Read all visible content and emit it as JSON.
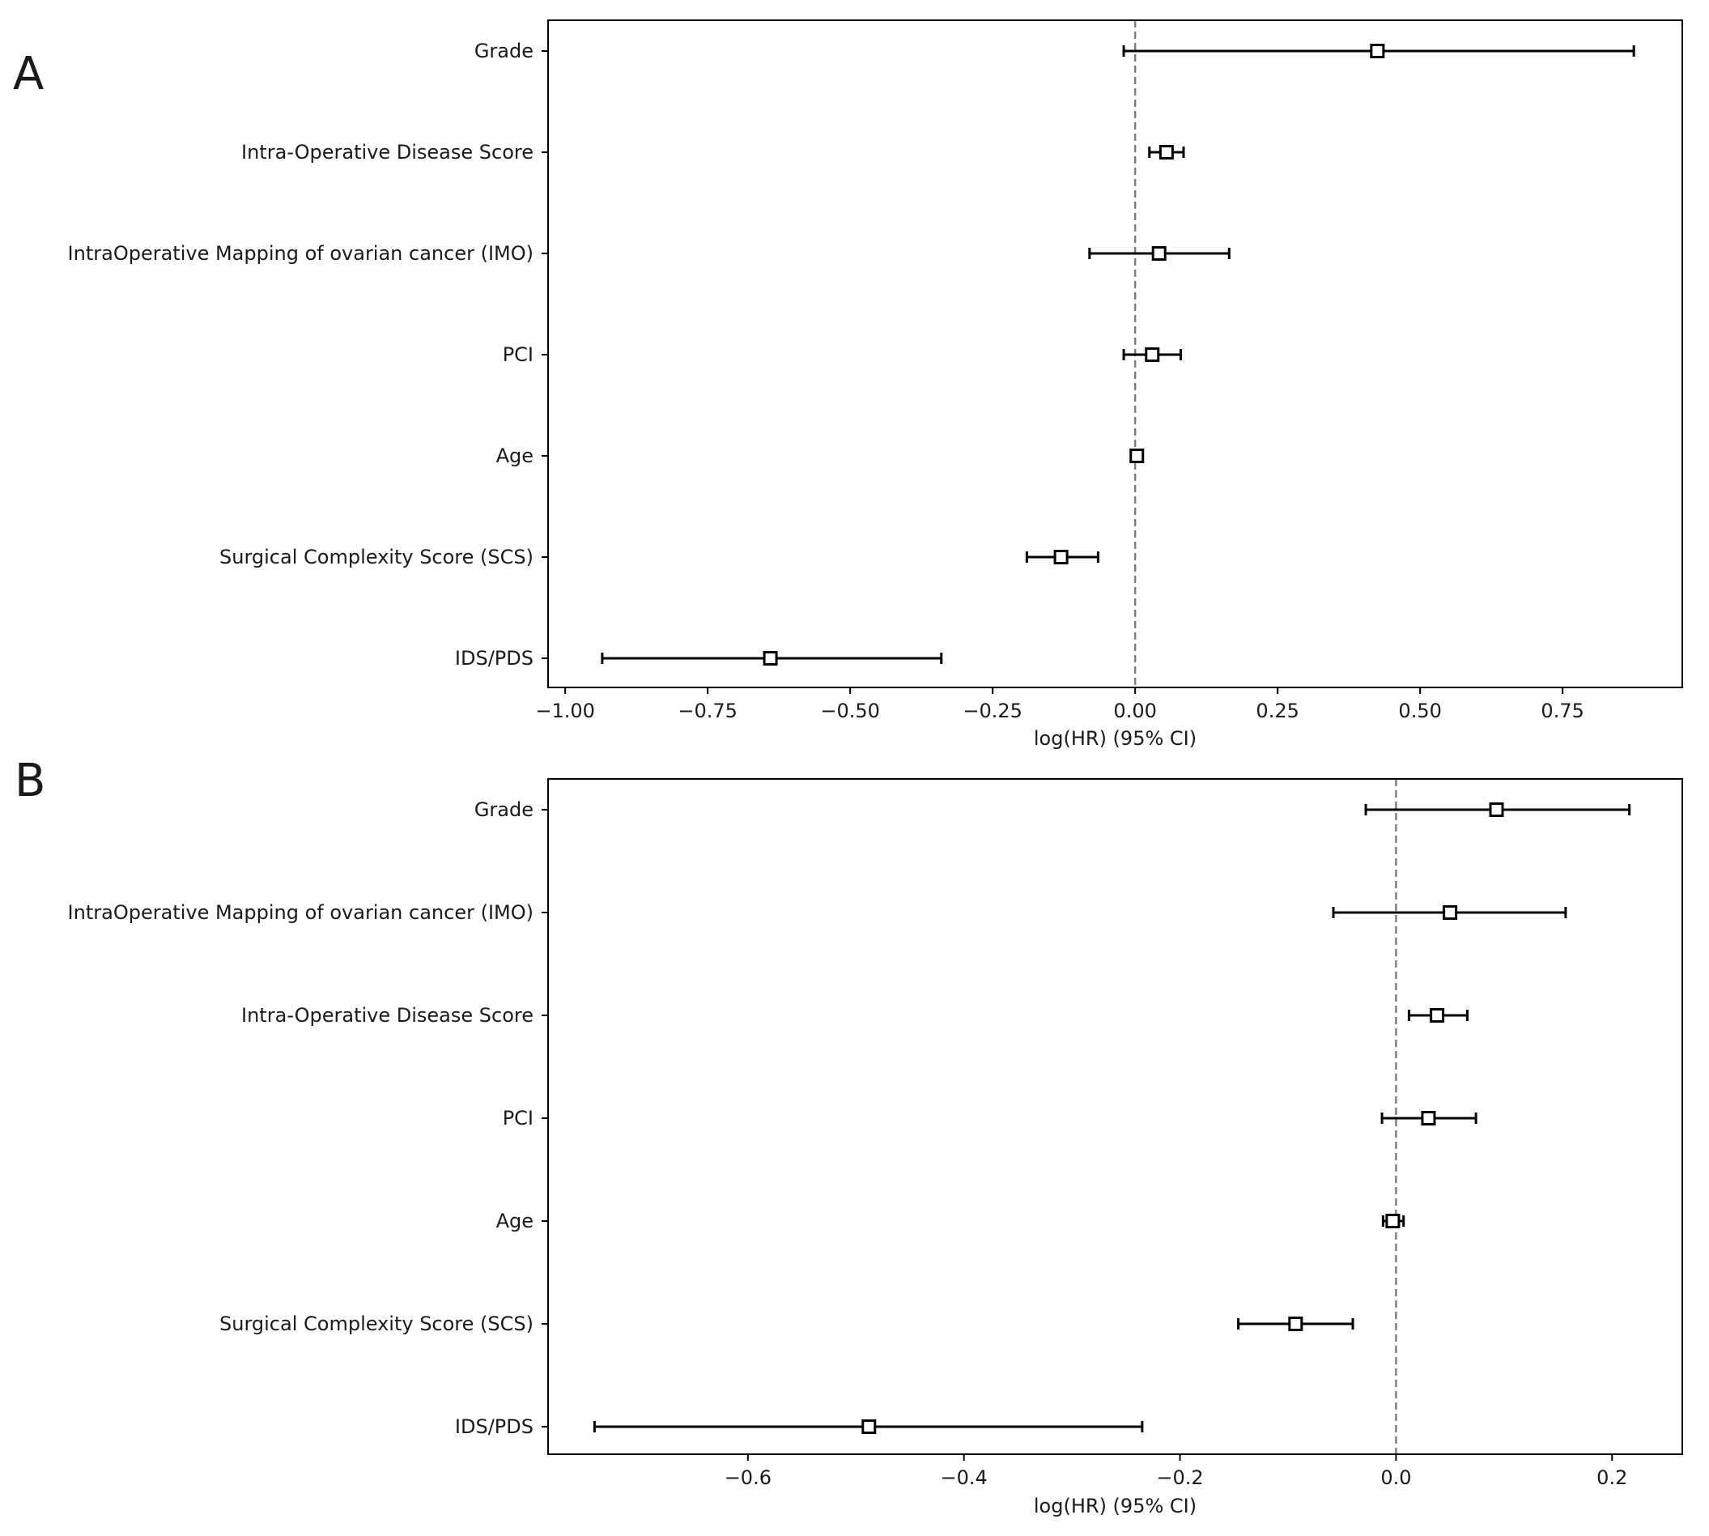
{
  "chart_data": [
    {
      "type": "forest",
      "panel": "A",
      "title": "",
      "xlabel": "log(HR) (95% CI)",
      "ylabel": "",
      "xlim": [
        -1.03,
        0.96
      ],
      "xticks": [
        -1.0,
        -0.75,
        -0.5,
        -0.25,
        0.0,
        0.25,
        0.5,
        0.75
      ],
      "xtick_labels": [
        "−1.00",
        "−0.75",
        "−0.50",
        "−0.25",
        "0.00",
        "0.25",
        "0.50",
        "0.75"
      ],
      "reference_line": 0,
      "grid": false,
      "rows": [
        {
          "label": "Grade",
          "estimate": 0.425,
          "lower": -0.02,
          "upper": 0.875
        },
        {
          "label": "Intra-Operative Disease Score",
          "estimate": 0.055,
          "lower": 0.025,
          "upper": 0.085
        },
        {
          "label": "IntraOperative Mapping of ovarian cancer (IMO)",
          "estimate": 0.042,
          "lower": -0.08,
          "upper": 0.165
        },
        {
          "label": "PCI",
          "estimate": 0.03,
          "lower": -0.02,
          "upper": 0.08
        },
        {
          "label": "Age",
          "estimate": 0.003,
          "lower": -0.005,
          "upper": 0.01
        },
        {
          "label": "Surgical Complexity Score (SCS)",
          "estimate": -0.13,
          "lower": -0.19,
          "upper": -0.065
        },
        {
          "label": "IDS/PDS",
          "estimate": -0.64,
          "lower": -0.935,
          "upper": -0.34
        }
      ]
    },
    {
      "type": "forest",
      "panel": "B",
      "title": "",
      "xlabel": "log(HR) (95% CI)",
      "ylabel": "",
      "xlim": [
        -0.785,
        0.265
      ],
      "xticks": [
        -0.6,
        -0.4,
        -0.2,
        0.0,
        0.2
      ],
      "xtick_labels": [
        "−0.6",
        "−0.4",
        "−0.2",
        "0.0",
        "0.2"
      ],
      "reference_line": 0,
      "grid": false,
      "rows": [
        {
          "label": "Grade",
          "estimate": 0.093,
          "lower": -0.028,
          "upper": 0.216
        },
        {
          "label": "IntraOperative Mapping of ovarian cancer (IMO)",
          "estimate": 0.05,
          "lower": -0.058,
          "upper": 0.157
        },
        {
          "label": "Intra-Operative Disease Score",
          "estimate": 0.038,
          "lower": 0.012,
          "upper": 0.066
        },
        {
          "label": "PCI",
          "estimate": 0.03,
          "lower": -0.013,
          "upper": 0.074
        },
        {
          "label": "Age",
          "estimate": -0.003,
          "lower": -0.012,
          "upper": 0.007
        },
        {
          "label": "Surgical Complexity Score (SCS)",
          "estimate": -0.093,
          "lower": -0.146,
          "upper": -0.04
        },
        {
          "label": "IDS/PDS",
          "estimate": -0.488,
          "lower": -0.742,
          "upper": -0.235
        }
      ]
    }
  ]
}
